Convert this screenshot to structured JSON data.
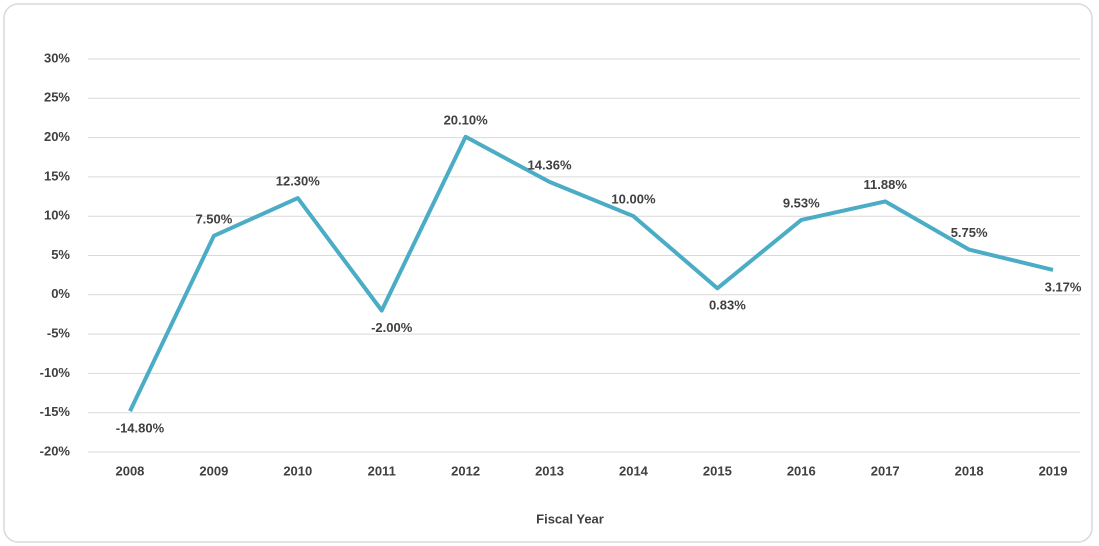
{
  "chart_data": {
    "type": "line",
    "x_label": "Fiscal Year",
    "categories": [
      "2008",
      "2009",
      "2010",
      "2011",
      "2012",
      "2013",
      "2014",
      "2015",
      "2016",
      "2017",
      "2018",
      "2019"
    ],
    "series": [
      {
        "color": "#4bacc6",
        "values": [
          -14.8,
          7.5,
          12.3,
          -2,
          20.1,
          14.36,
          10,
          0.83,
          9.53,
          11.88,
          5.75,
          3.17
        ],
        "value_labels": [
          "-14.80%",
          "7.50%",
          "12.30%",
          "-2.00%",
          "20.10%",
          "14.36%",
          "10.00%",
          "0.83%",
          "9.53%",
          "11.88%",
          "5.75%",
          "3.17%"
        ]
      }
    ],
    "ylim": [
      -20,
      30
    ],
    "yticks": [
      {
        "value": -20,
        "label": "-20%"
      },
      {
        "value": -15,
        "label": "-15%"
      },
      {
        "value": -10,
        "label": "-10%"
      },
      {
        "value": -5,
        "label": "-5%"
      },
      {
        "value": 0,
        "label": "0%"
      },
      {
        "value": 5,
        "label": "5%"
      },
      {
        "value": 10,
        "label": "10%"
      },
      {
        "value": 15,
        "label": "15%"
      },
      {
        "value": 20,
        "label": "20%"
      },
      {
        "value": 25,
        "label": "25%"
      },
      {
        "value": 30,
        "label": "30%"
      }
    ],
    "grid": true
  }
}
